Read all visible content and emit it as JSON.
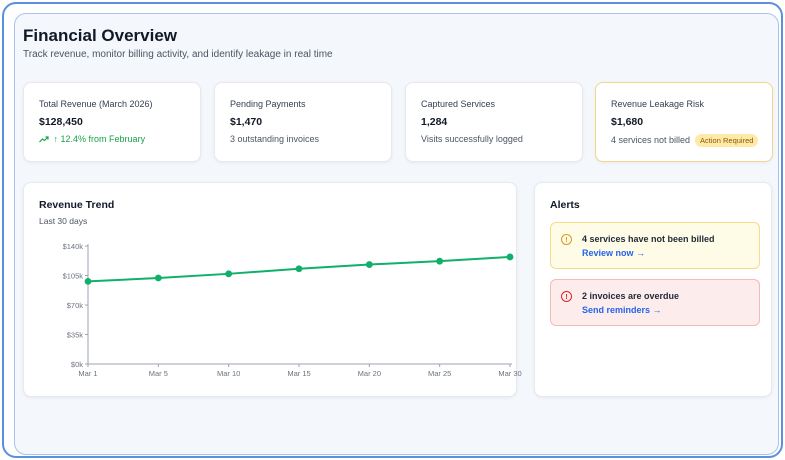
{
  "header": {
    "title": "Financial Overview",
    "subtitle": "Track revenue, monitor billing activity, and identify leakage in real time"
  },
  "kpis": [
    {
      "label": "Total Revenue (March 2026)",
      "value": "$128,450",
      "sub": "12.4% from February",
      "trend_icon": "trend-up-icon"
    },
    {
      "label": "Pending Payments",
      "value": "$1,470",
      "sub": "3 outstanding invoices"
    },
    {
      "label": "Captured Services",
      "value": "1,284",
      "sub": "Visits successfully logged"
    },
    {
      "label": "Revenue Leakage Risk",
      "value": "$1,680",
      "sub": "4 services not billed",
      "badge": "Action Required"
    }
  ],
  "chart": {
    "title": "Revenue Trend",
    "subtitle": "Last 30 days"
  },
  "chart_data": {
    "type": "line",
    "title": "Revenue Trend",
    "subtitle": "Last 30 days",
    "x": [
      "Mar 1",
      "Mar 5",
      "Mar 10",
      "Mar 15",
      "Mar 20",
      "Mar 25",
      "Mar 30"
    ],
    "y_ticks": [
      "$0k",
      "$35k",
      "$70k",
      "$105k",
      "$140k"
    ],
    "ylim": [
      0,
      140
    ],
    "series": [
      {
        "values": [
          98,
          102,
          107,
          113,
          118,
          122,
          127
        ],
        "color": "#10b06a"
      }
    ],
    "grid": false,
    "legend": "none"
  },
  "alerts": {
    "title": "Alerts",
    "items": [
      {
        "text": "4 services have not been billed",
        "link": "Review now →",
        "icon": "!"
      },
      {
        "text": "2 invoices are overdue",
        "link": "Send reminders →",
        "icon": "!"
      }
    ]
  },
  "colors": {
    "accent": "#10b06a",
    "link": "#2563eb",
    "warning_bg": "#fefbe6",
    "danger_bg": "#fdecec",
    "badge_bg": "#fde9a8"
  }
}
